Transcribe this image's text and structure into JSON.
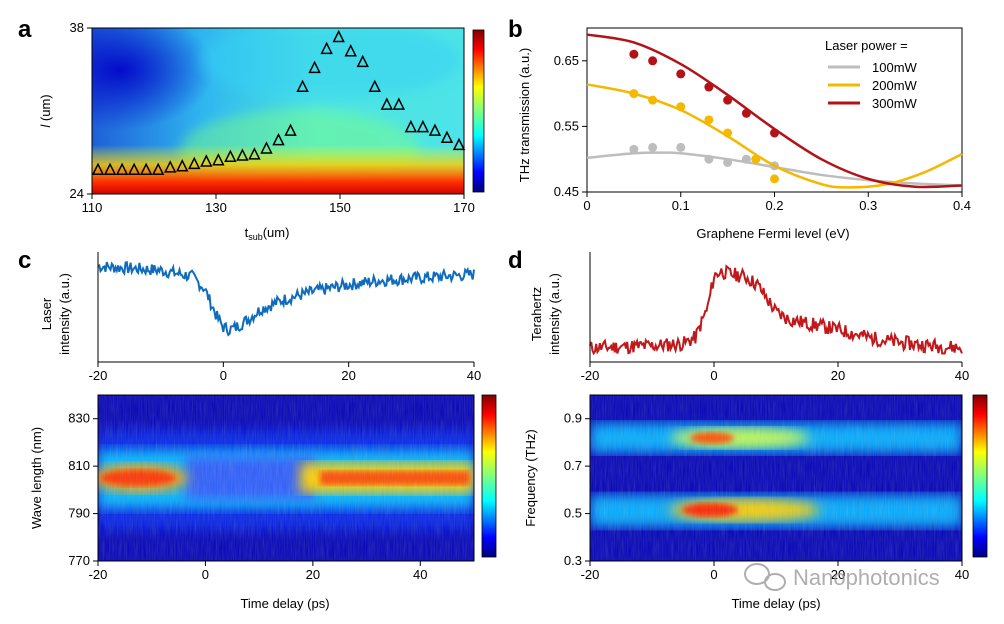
{
  "colors": {
    "blue": "#0f6cbd",
    "red": "#c0181b",
    "gray": "#bdbdbd",
    "yellow": "#f5b800",
    "dark_red": "#b31217"
  },
  "colorbar": [
    "#00007f",
    "#0000ff",
    "#007fff",
    "#00ffff",
    "#7fff7f",
    "#ffff00",
    "#ff7f00",
    "#ff0000",
    "#7f0000"
  ],
  "watermark": "Nanophotonics",
  "chart_data": [
    {
      "panel": "a",
      "type": "heatmap",
      "xlabel_main": "t",
      "xlabel_sub": "sub",
      "xlabel_unit": "(um)",
      "ylabel_italic": "l",
      "ylabel_unit": " (um)",
      "xlim": [
        110,
        170
      ],
      "ylim": [
        24,
        38
      ],
      "xticks": [
        "110",
        "130",
        "150",
        "170"
      ],
      "yticks": [
        "24",
        "38"
      ],
      "markers": {
        "x": [
          110,
          112,
          114,
          116,
          118,
          120,
          122,
          124,
          126,
          128,
          130,
          132,
          134,
          136,
          138,
          140,
          142,
          144,
          146,
          148,
          150,
          152,
          154,
          156,
          158,
          160,
          162,
          164,
          166,
          168,
          170
        ],
        "y": [
          26,
          26,
          26,
          26,
          26,
          26,
          26.2,
          26.3,
          26.5,
          26.7,
          26.8,
          27.1,
          27.2,
          27.3,
          27.8,
          28.5,
          29.3,
          33,
          34.6,
          36.2,
          37.2,
          36,
          35.1,
          33,
          31.5,
          31.5,
          29.6,
          29.6,
          29.3,
          28.7,
          28.1
        ]
      }
    },
    {
      "panel": "b",
      "type": "line",
      "xlabel": "Graphene Fermi level (eV)",
      "ylabel": "THz transmission (a.u.)",
      "xlim": [
        0,
        0.4
      ],
      "ylim": [
        0.45,
        0.7
      ],
      "xticks": [
        "0",
        "0.1",
        "0.2",
        "0.3",
        "0.4"
      ],
      "yticks": [
        "0.45",
        "0.55",
        "0.65"
      ],
      "legend_title": "Laser power =",
      "legend_position": "top-right",
      "series": [
        {
          "name": "100mW",
          "color": "#bdbdbd",
          "curve_x": [
            0,
            0.05,
            0.08,
            0.1,
            0.15,
            0.2,
            0.25,
            0.3,
            0.35,
            0.4
          ],
          "curve_y": [
            0.502,
            0.509,
            0.51,
            0.509,
            0.5,
            0.488,
            0.476,
            0.468,
            0.463,
            0.46
          ],
          "points_x": [
            0.05,
            0.07,
            0.1,
            0.13,
            0.15,
            0.17,
            0.2
          ],
          "points_y": [
            0.515,
            0.518,
            0.518,
            0.5,
            0.495,
            0.5,
            0.49
          ]
        },
        {
          "name": "200mW",
          "color": "#f5b800",
          "curve_x": [
            0,
            0.05,
            0.1,
            0.15,
            0.2,
            0.25,
            0.28,
            0.32,
            0.36,
            0.4
          ],
          "curve_y": [
            0.614,
            0.6,
            0.575,
            0.535,
            0.49,
            0.462,
            0.457,
            0.462,
            0.48,
            0.508
          ],
          "points_x": [
            0.05,
            0.07,
            0.1,
            0.13,
            0.15,
            0.18,
            0.2
          ],
          "points_y": [
            0.6,
            0.59,
            0.58,
            0.56,
            0.54,
            0.5,
            0.47
          ]
        },
        {
          "name": "300mW",
          "color": "#b31217",
          "curve_x": [
            0,
            0.05,
            0.1,
            0.15,
            0.2,
            0.25,
            0.3,
            0.35,
            0.4
          ],
          "curve_y": [
            0.69,
            0.678,
            0.645,
            0.598,
            0.546,
            0.5,
            0.47,
            0.458,
            0.46
          ],
          "points_x": [
            0.05,
            0.07,
            0.1,
            0.13,
            0.15,
            0.17,
            0.2
          ],
          "points_y": [
            0.66,
            0.65,
            0.63,
            0.61,
            0.59,
            0.57,
            0.54
          ]
        }
      ]
    },
    {
      "panel": "c",
      "type": "line+heatmap",
      "top_ylabel_1": "Laser",
      "top_ylabel_2": "intensity (a.u.)",
      "xlabel": "Time delay (ps)",
      "ylabel": "Wave length (nm)",
      "xlim": [
        -20,
        50
      ],
      "top_xlim": [
        -20,
        40
      ],
      "ylim": [
        770,
        840
      ],
      "top_xticks": [
        "-20",
        "0",
        "20",
        "40"
      ],
      "xticks": [
        "-20",
        "0",
        "20",
        "40"
      ],
      "yticks": [
        "770",
        "790",
        "810",
        "830"
      ],
      "trace_x": [
        -20,
        -15,
        -10,
        -5,
        -3,
        -1,
        0,
        1,
        2,
        4,
        6,
        10,
        15,
        20,
        25,
        30,
        35,
        40
      ],
      "trace_y": [
        0.9,
        0.88,
        0.86,
        0.8,
        0.68,
        0.4,
        0.3,
        0.28,
        0.3,
        0.38,
        0.48,
        0.58,
        0.66,
        0.72,
        0.76,
        0.78,
        0.8,
        0.82
      ],
      "band_center_nm": 804
    },
    {
      "panel": "d",
      "type": "line+heatmap",
      "top_ylabel_1": "Terahertz",
      "top_ylabel_2": "intensity (a.u.)",
      "xlabel": "Time delay (ps)",
      "ylabel": "Frequency (THz)",
      "xlim": [
        -20,
        40
      ],
      "top_xlim": [
        -20,
        40
      ],
      "ylim": [
        0.3,
        1.0
      ],
      "top_xticks": [
        "-20",
        "0",
        "20",
        "40"
      ],
      "xticks": [
        "-20",
        "0",
        "20",
        "40"
      ],
      "yticks": [
        "0.3",
        "0.5",
        "0.7",
        "0.9"
      ],
      "trace_x": [
        -20,
        -10,
        -5,
        -3,
        -1,
        0,
        1,
        3,
        5,
        7,
        10,
        12,
        15,
        20,
        25,
        30,
        35,
        40
      ],
      "trace_y": [
        0.1,
        0.12,
        0.14,
        0.2,
        0.5,
        0.8,
        0.85,
        0.82,
        0.8,
        0.72,
        0.45,
        0.38,
        0.34,
        0.28,
        0.2,
        0.15,
        0.12,
        0.1
      ],
      "bands_thz": [
        0.8,
        0.5
      ]
    }
  ]
}
